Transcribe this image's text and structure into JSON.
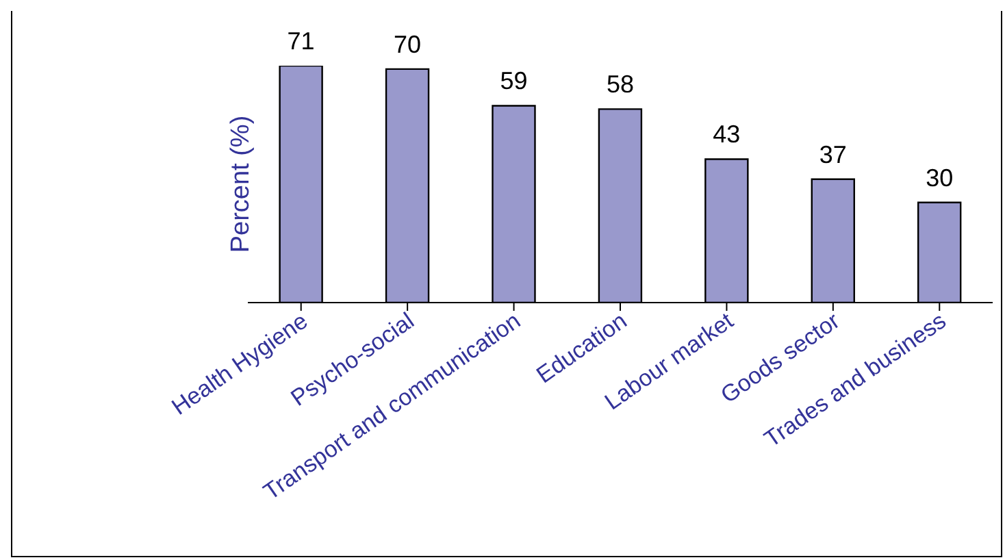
{
  "chart_data": {
    "type": "bar",
    "ylabel": "Percent (%)",
    "categories": [
      "Health Hygiene",
      "Psycho-social",
      "Transport and communication",
      "Education",
      "Labour market",
      "Goods sector",
      "Trades and business"
    ],
    "values": [
      71,
      70,
      59,
      58,
      43,
      37,
      30
    ],
    "color": "#9999cc",
    "data_labels": true,
    "grid": false,
    "legend": false
  }
}
